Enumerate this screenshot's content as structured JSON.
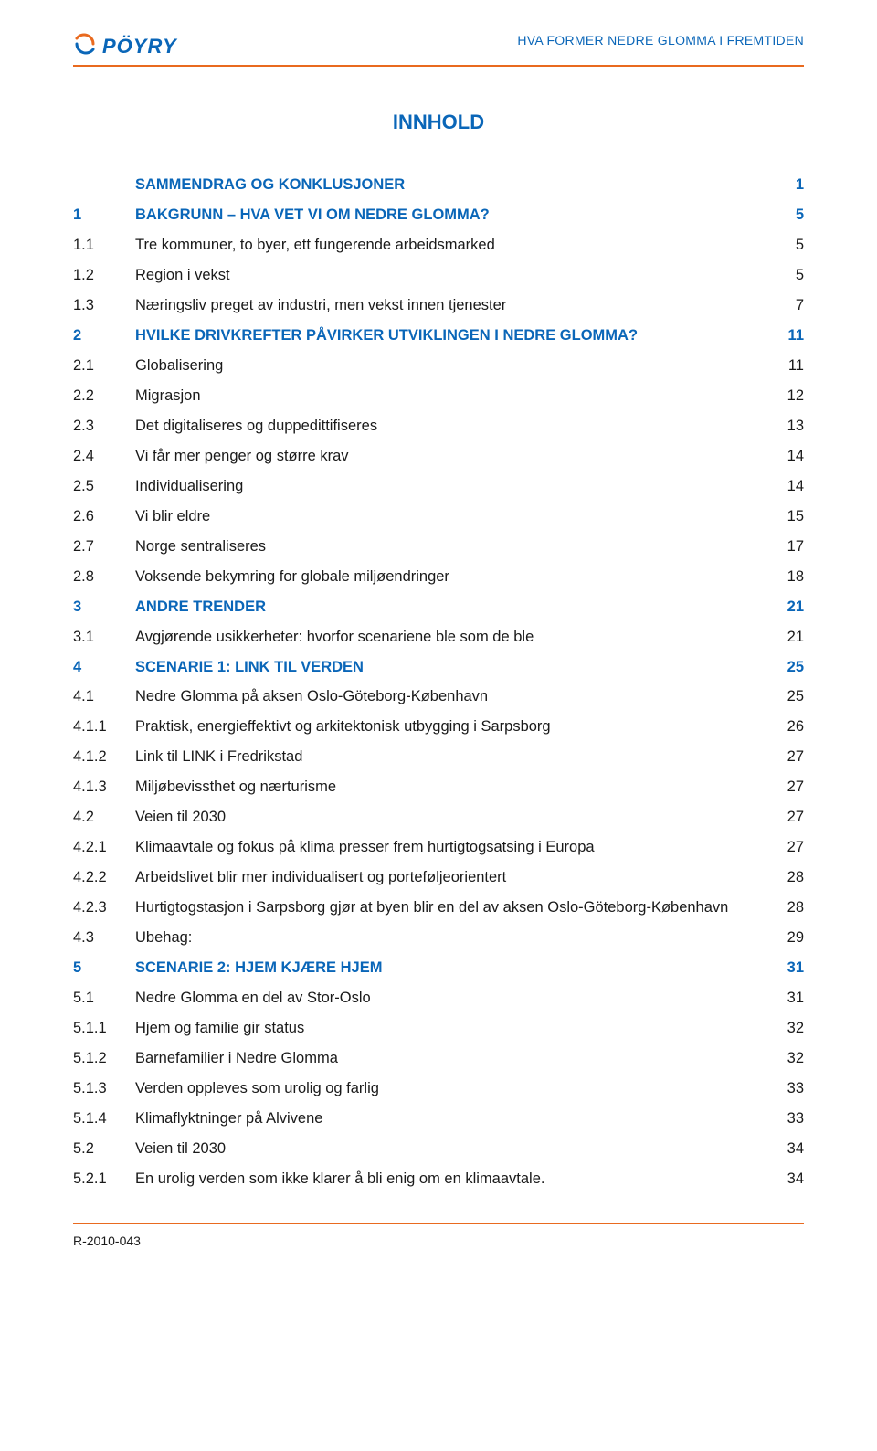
{
  "colors": {
    "brand_blue": "#0a66b8",
    "accent_orange": "#e96a1f",
    "text_black": "#1a1a1a",
    "rule": "#e96a1f"
  },
  "header": {
    "brand": "PÖYRY",
    "right_text": "HVA FORMER NEDRE GLOMMA I FREMTIDEN"
  },
  "title": "INNHOLD",
  "footer": "R-2010-043",
  "toc": [
    {
      "level": 0,
      "num": "",
      "label": "SAMMENDRAG OG KONKLUSJONER",
      "page": "1",
      "color": "blue"
    },
    {
      "level": 0,
      "num": "1",
      "label": "BAKGRUNN – HVA VET VI OM NEDRE GLOMMA?",
      "page": "5",
      "color": "blue"
    },
    {
      "level": 1,
      "num": "1.1",
      "label": "Tre kommuner, to byer, ett fungerende arbeidsmarked",
      "page": "5",
      "color": "black"
    },
    {
      "level": 1,
      "num": "1.2",
      "label": "Region i vekst",
      "page": "5",
      "color": "black"
    },
    {
      "level": 1,
      "num": "1.3",
      "label": "Næringsliv preget av industri, men vekst innen tjenester",
      "page": "7",
      "color": "black"
    },
    {
      "level": 0,
      "num": "2",
      "label": "HVILKE DRIVKREFTER PÅVIRKER UTVIKLINGEN I NEDRE GLOMMA?",
      "page": "11",
      "color": "blue"
    },
    {
      "level": 1,
      "num": "2.1",
      "label": "Globalisering",
      "page": "11",
      "color": "black"
    },
    {
      "level": 1,
      "num": "2.2",
      "label": "Migrasjon",
      "page": "12",
      "color": "black"
    },
    {
      "level": 1,
      "num": "2.3",
      "label": "Det digitaliseres og duppedittifiseres",
      "page": "13",
      "color": "black"
    },
    {
      "level": 1,
      "num": "2.4",
      "label": "Vi får mer penger og større krav",
      "page": "14",
      "color": "black"
    },
    {
      "level": 1,
      "num": "2.5",
      "label": "Individualisering",
      "page": "14",
      "color": "black"
    },
    {
      "level": 1,
      "num": "2.6",
      "label": "Vi blir eldre",
      "page": "15",
      "color": "black"
    },
    {
      "level": 1,
      "num": "2.7",
      "label": "Norge sentraliseres",
      "page": "17",
      "color": "black"
    },
    {
      "level": 1,
      "num": "2.8",
      "label": "Voksende bekymring for globale miljøendringer",
      "page": "18",
      "color": "black"
    },
    {
      "level": 0,
      "num": "3",
      "label": "ANDRE TRENDER",
      "page": "21",
      "color": "blue"
    },
    {
      "level": 1,
      "num": "3.1",
      "label": "Avgjørende usikkerheter: hvorfor scenariene ble som de ble",
      "page": "21",
      "color": "black"
    },
    {
      "level": 0,
      "num": "4",
      "label": "SCENARIE 1: LINK TIL VERDEN",
      "page": "25",
      "color": "blue"
    },
    {
      "level": 1,
      "num": "4.1",
      "label": "Nedre Glomma på aksen Oslo-Göteborg-København",
      "page": "25",
      "color": "black"
    },
    {
      "level": 2,
      "num": "4.1.1",
      "label": "Praktisk, energieffektivt og arkitektonisk utbygging i Sarpsborg",
      "page": "26",
      "color": "black"
    },
    {
      "level": 2,
      "num": "4.1.2",
      "label": "Link til LINK i Fredrikstad",
      "page": "27",
      "color": "black"
    },
    {
      "level": 2,
      "num": "4.1.3",
      "label": "Miljøbevissthet og nærturisme",
      "page": "27",
      "color": "black"
    },
    {
      "level": 1,
      "num": "4.2",
      "label": "Veien til 2030",
      "page": "27",
      "color": "black"
    },
    {
      "level": 2,
      "num": "4.2.1",
      "label": "Klimaavtale og fokus på klima presser frem hurtigtogsatsing i Europa",
      "page": "27",
      "color": "black"
    },
    {
      "level": 2,
      "num": "4.2.2",
      "label": "Arbeidslivet blir mer individualisert og porteføljeorientert",
      "page": "28",
      "color": "black"
    },
    {
      "level": 2,
      "num": "4.2.3",
      "label": "Hurtigtogstasjon i Sarpsborg gjør at byen blir en del av aksen Oslo-Göteborg-København",
      "page": "28",
      "color": "black"
    },
    {
      "level": 1,
      "num": "4.3",
      "label": "Ubehag:",
      "page": "29",
      "color": "black"
    },
    {
      "level": 0,
      "num": "5",
      "label": "SCENARIE 2: HJEM KJÆRE HJEM",
      "page": "31",
      "color": "blue"
    },
    {
      "level": 1,
      "num": "5.1",
      "label": "Nedre Glomma en del av Stor-Oslo",
      "page": "31",
      "color": "black"
    },
    {
      "level": 2,
      "num": "5.1.1",
      "label": "Hjem og familie gir status",
      "page": "32",
      "color": "black"
    },
    {
      "level": 2,
      "num": "5.1.2",
      "label": "Barnefamilier i Nedre Glomma",
      "page": "32",
      "color": "black"
    },
    {
      "level": 2,
      "num": "5.1.3",
      "label": "Verden oppleves som urolig og farlig",
      "page": "33",
      "color": "black"
    },
    {
      "level": 2,
      "num": "5.1.4",
      "label": "Klimaflyktninger på Alvivene",
      "page": "33",
      "color": "black"
    },
    {
      "level": 1,
      "num": "5.2",
      "label": "Veien til 2030",
      "page": "34",
      "color": "black"
    },
    {
      "level": 2,
      "num": "5.2.1",
      "label": "En urolig verden som ikke klarer å bli enig om en klimaavtale.",
      "page": "34",
      "color": "black"
    }
  ]
}
